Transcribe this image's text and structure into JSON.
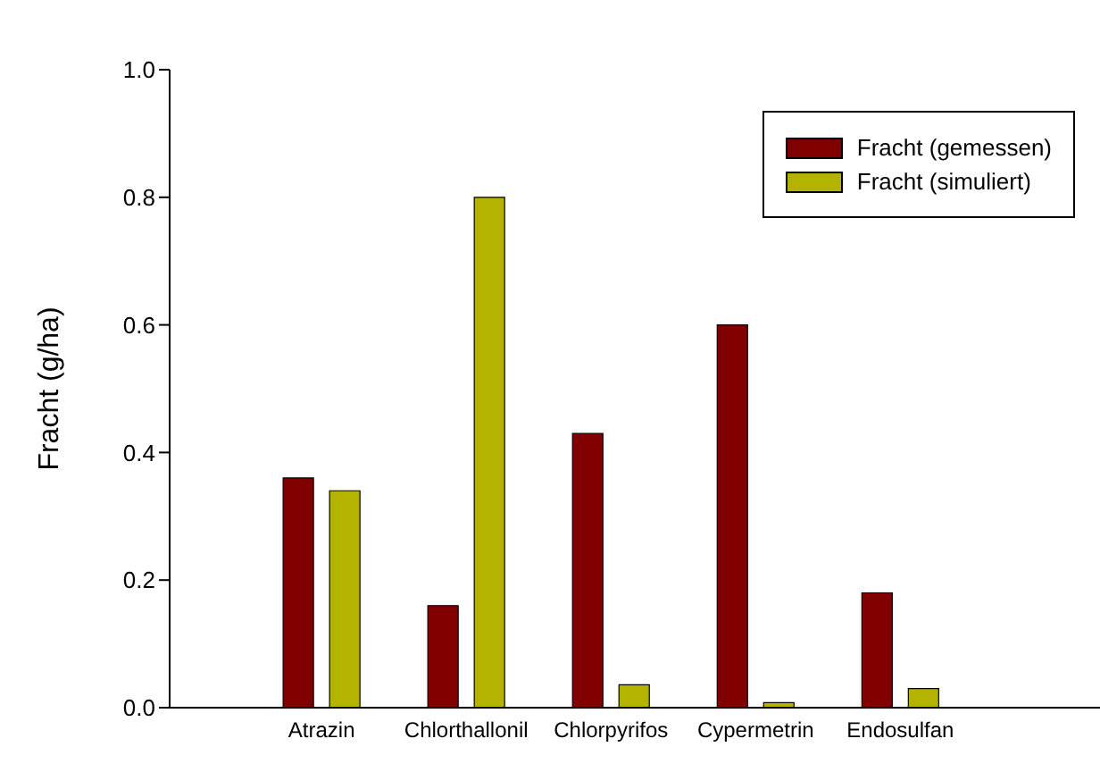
{
  "chart_data": {
    "type": "bar",
    "ylabel": "Fracht (g/ha)",
    "categories": [
      "Atrazin",
      "Chlorthallonil",
      "Chlorpyrifos",
      "Cypermetrin",
      "Endosulfan"
    ],
    "series": [
      {
        "name": "Fracht (gemessen)",
        "color": "#800000",
        "values": [
          0.36,
          0.16,
          0.43,
          0.6,
          0.18
        ]
      },
      {
        "name": "Fracht (simuliert)",
        "color": "#b4b400",
        "values": [
          0.34,
          0.8,
          0.036,
          0.008,
          0.03
        ]
      }
    ],
    "ylim": [
      0,
      1.0
    ],
    "yticks": [
      {
        "value": 0,
        "label": "0.0"
      },
      {
        "value": 0.2,
        "label": "0.2"
      },
      {
        "value": 0.4,
        "label": "0.4"
      },
      {
        "value": 0.6,
        "label": "0.6"
      },
      {
        "value": 0.8,
        "label": "0.8"
      },
      {
        "value": 1.0,
        "label": "1.0"
      }
    ],
    "grid": false,
    "legend": "top right"
  }
}
